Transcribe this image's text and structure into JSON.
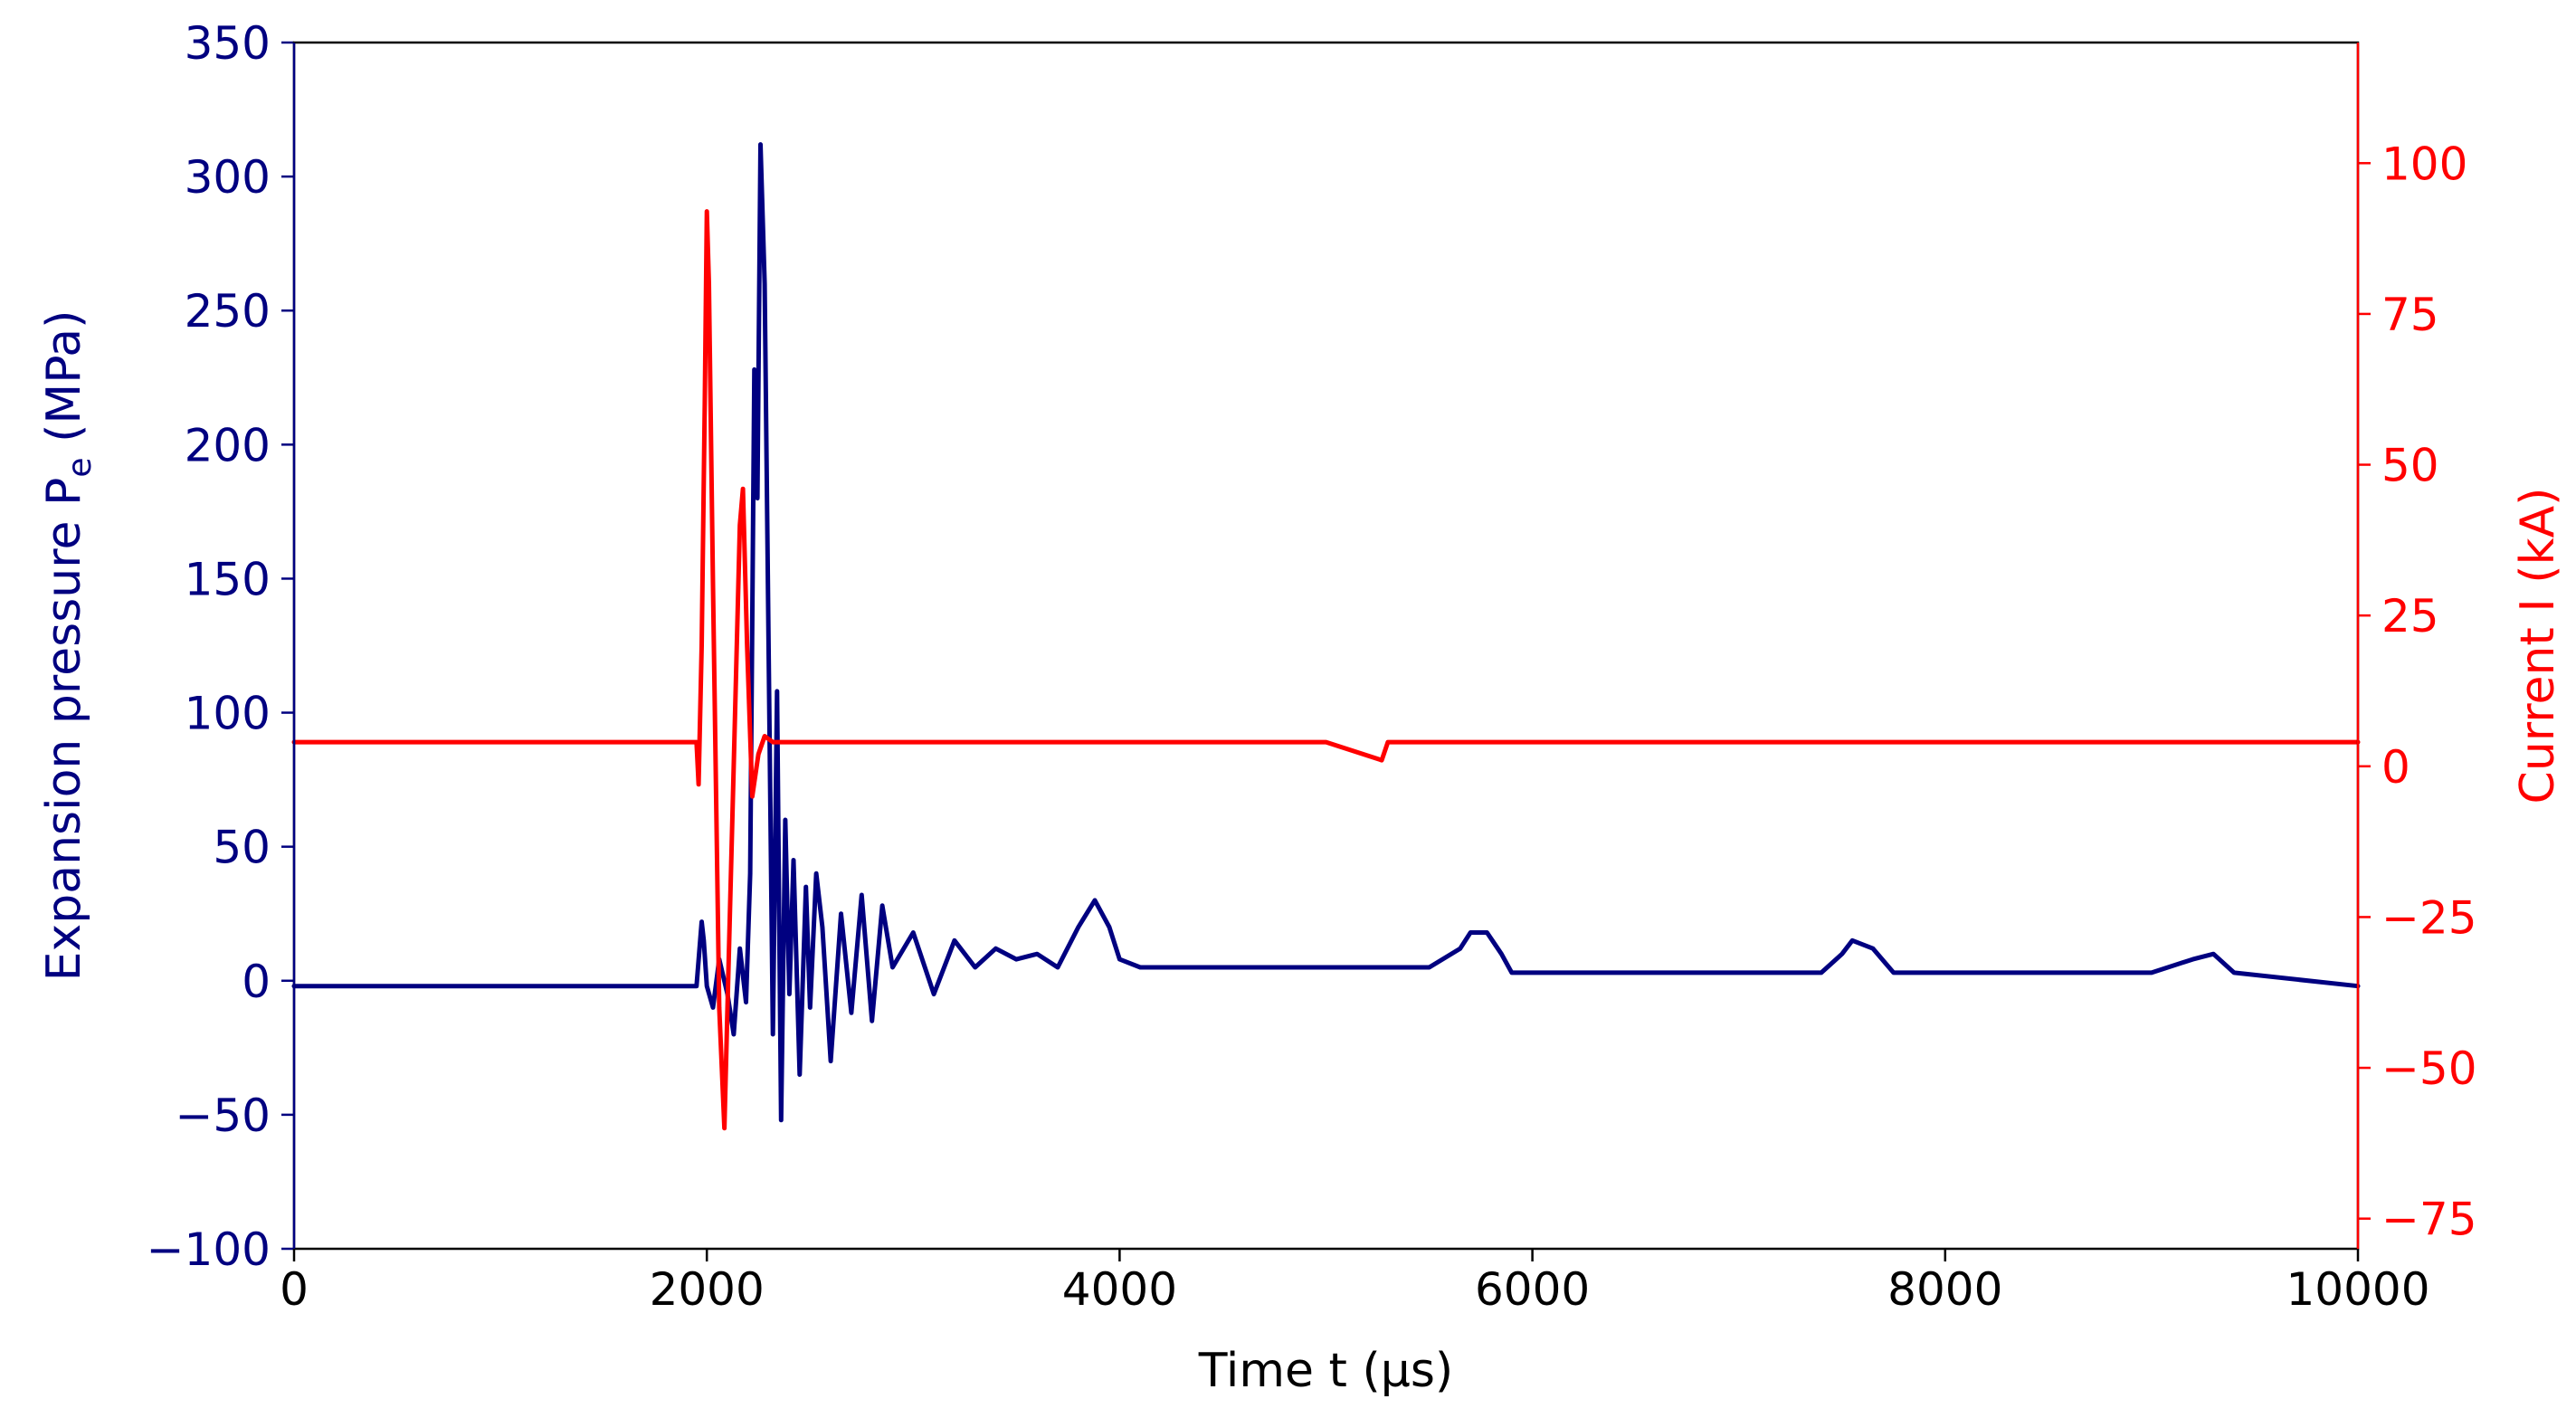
{
  "chart_data": {
    "type": "line",
    "xlabel": "Time t (μs)",
    "x_ticks": [
      "0",
      "2000",
      "4000",
      "6000",
      "8000",
      "10000"
    ],
    "xlim": [
      0,
      10000
    ],
    "grid": false,
    "legend": "none",
    "left_axis": {
      "label": "Expansion pressure P",
      "label_subscript": "e",
      "label_unit": " (MPa)",
      "color": "#000080",
      "ylim": [
        -100,
        350
      ],
      "ticks": [
        "−100",
        "−50",
        "0",
        "50",
        "100",
        "150",
        "200",
        "250",
        "300",
        "350"
      ]
    },
    "right_axis": {
      "label": "Current I (kA)",
      "color": "#ff0000",
      "ylim": [
        -80,
        120
      ],
      "ticks": [
        "−75",
        "−50",
        "−25",
        "0",
        "25",
        "50",
        "75",
        "100"
      ]
    },
    "series": [
      {
        "axis": "left",
        "color": "#000080",
        "x": [
          0,
          1950,
          1975,
          1985,
          2000,
          2030,
          2060,
          2100,
          2130,
          2160,
          2190,
          2210,
          2230,
          2245,
          2260,
          2280,
          2300,
          2320,
          2340,
          2360,
          2380,
          2400,
          2420,
          2450,
          2480,
          2500,
          2530,
          2560,
          2600,
          2650,
          2700,
          2750,
          2800,
          2850,
          2900,
          3000,
          3100,
          3200,
          3300,
          3400,
          3500,
          3600,
          3700,
          3800,
          3880,
          3950,
          4000,
          4100,
          4500,
          5000,
          5500,
          5650,
          5700,
          5780,
          5850,
          5900,
          6200,
          7000,
          7400,
          7500,
          7550,
          7650,
          7750,
          8000,
          9000,
          9200,
          9300,
          9400,
          10000
        ],
        "y": [
          -2,
          -2,
          22,
          15,
          -2,
          -10,
          8,
          -5,
          -20,
          12,
          -8,
          40,
          228,
          180,
          312,
          260,
          120,
          -20,
          108,
          -52,
          60,
          -5,
          45,
          -35,
          35,
          -10,
          40,
          20,
          -30,
          25,
          -12,
          32,
          -15,
          28,
          5,
          18,
          -5,
          15,
          5,
          12,
          8,
          10,
          5,
          20,
          30,
          20,
          8,
          5,
          5,
          5,
          5,
          12,
          18,
          18,
          10,
          3,
          3,
          3,
          3,
          10,
          15,
          12,
          3,
          3,
          3,
          8,
          10,
          3,
          -2
        ]
      },
      {
        "axis": "right",
        "color": "#ff0000",
        "x": [
          0,
          1950,
          1960,
          1975,
          1990,
          2000,
          2010,
          2030,
          2060,
          2085,
          2100,
          2130,
          2160,
          2175,
          2195,
          2220,
          2250,
          2280,
          2320,
          2500,
          3000,
          4000,
          5000,
          5270,
          5300,
          6000,
          7000,
          8000,
          9000,
          10000
        ],
        "y": [
          4,
          4,
          -3,
          20,
          60,
          92,
          80,
          30,
          -40,
          -60,
          -40,
          0,
          40,
          46,
          20,
          -5,
          2,
          5,
          4,
          4,
          4,
          4,
          4,
          1,
          4,
          4,
          4,
          4,
          4,
          4
        ]
      }
    ]
  }
}
